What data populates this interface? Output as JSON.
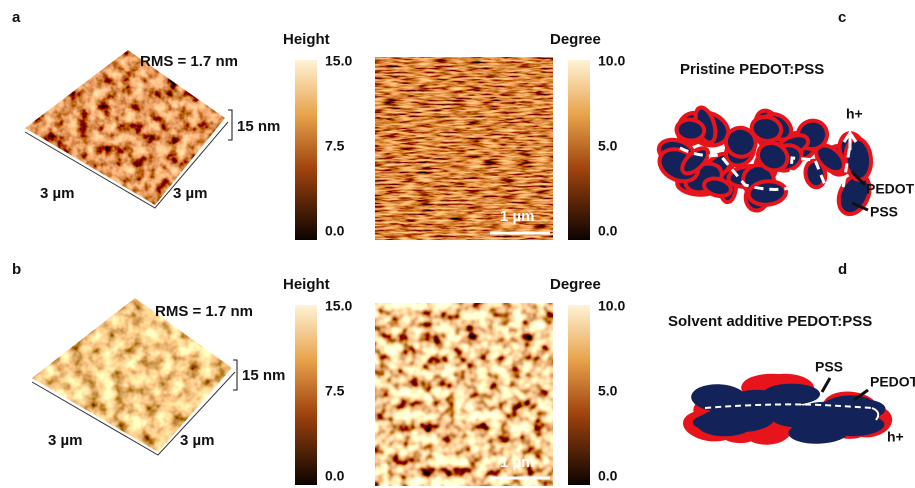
{
  "panels": [
    {
      "label": "a",
      "rms": "RMS = 1.7 nm",
      "x_size": "3 µm",
      "y_size": "3 µm",
      "z_size": "15 nm",
      "height_bar": {
        "title": "Height",
        "ticks": [
          "15.0",
          "7.5",
          "0.0"
        ]
      },
      "phase_bar": {
        "title": "Degree",
        "ticks": [
          "10.0",
          "5.0",
          "0.0"
        ]
      },
      "scale_bar": "1 µm"
    },
    {
      "label": "b",
      "rms": "RMS = 1.7 nm",
      "x_size": "3 µm",
      "y_size": "3 µm",
      "z_size": "15 nm",
      "height_bar": {
        "title": "Height",
        "ticks": [
          "15.0",
          "7.5",
          "0.0"
        ]
      },
      "phase_bar": {
        "title": "Degree",
        "ticks": [
          "10.0",
          "5.0",
          "0.0"
        ]
      },
      "scale_bar": "1 µm"
    }
  ],
  "schematics": [
    {
      "label": "c",
      "title": "Pristine PEDOT:PSS",
      "hole": "h+",
      "pedot": "PEDOT",
      "pss": "PSS"
    },
    {
      "label": "d",
      "title": "Solvent additive PEDOT:PSS",
      "hole": "h+",
      "pedot": "PEDOT",
      "pss": "PSS"
    }
  ]
}
